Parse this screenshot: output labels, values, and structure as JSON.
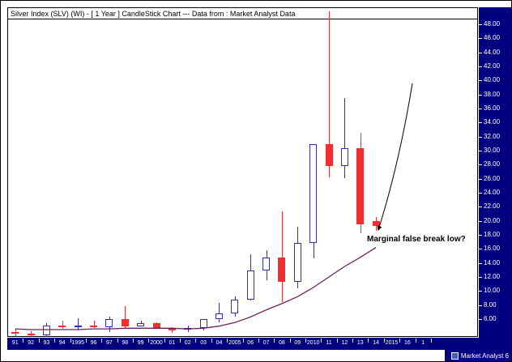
{
  "chart_data": {
    "type": "candlestick",
    "title_line": "Silver Index (SLV) (WI) -  [ 1 Year ] CandleStick Chart --- Data from : Market Analyst Data",
    "x_labels": [
      "91",
      "92",
      "93",
      "94",
      "1995",
      "96",
      "97",
      "98",
      "99",
      "2000",
      "01",
      "02",
      "03",
      "04",
      "2005",
      "06",
      "07",
      "08",
      "09",
      "2010",
      "11",
      "12",
      "13",
      "14",
      "2015",
      "16",
      "1"
    ],
    "y_tick_labels": [
      "48.00",
      "46.00",
      "44.00",
      "42.00",
      "40.00",
      "38.00",
      "36.00",
      "34.00",
      "32.00",
      "30.00",
      "28.00",
      "26.00",
      "24.00",
      "22.00",
      "20.00",
      "18.00",
      "16.00",
      "14.00",
      "12.00",
      "10.00",
      "8.00",
      "6.00"
    ],
    "ylim": [
      3.4,
      50.5
    ],
    "grid": "off",
    "candles": [
      {
        "year": "1991",
        "o": 4.2,
        "h": 4.6,
        "l": 3.6,
        "c": 3.9
      },
      {
        "year": "1992",
        "o": 3.9,
        "h": 4.3,
        "l": 3.6,
        "c": 3.7
      },
      {
        "year": "1993",
        "o": 3.7,
        "h": 5.4,
        "l": 3.6,
        "c": 5.1
      },
      {
        "year": "1994",
        "o": 5.1,
        "h": 5.8,
        "l": 4.6,
        "c": 4.9
      },
      {
        "year": "1995",
        "o": 4.9,
        "h": 6.1,
        "l": 4.4,
        "c": 5.1
      },
      {
        "year": "1996",
        "o": 5.1,
        "h": 5.8,
        "l": 4.7,
        "c": 4.8
      },
      {
        "year": "1997",
        "o": 4.8,
        "h": 6.3,
        "l": 4.2,
        "c": 6.0
      },
      {
        "year": "1998",
        "o": 6.0,
        "h": 7.8,
        "l": 4.6,
        "c": 5.0
      },
      {
        "year": "1999",
        "o": 5.0,
        "h": 5.8,
        "l": 4.9,
        "c": 5.4
      },
      {
        "year": "2000",
        "o": 5.4,
        "h": 5.6,
        "l": 4.6,
        "c": 4.6
      },
      {
        "year": "2001",
        "o": 4.6,
        "h": 4.8,
        "l": 4.0,
        "c": 4.5
      },
      {
        "year": "2002",
        "o": 4.5,
        "h": 5.1,
        "l": 4.2,
        "c": 4.7
      },
      {
        "year": "2003",
        "o": 4.7,
        "h": 6.0,
        "l": 4.4,
        "c": 6.0
      },
      {
        "year": "2004",
        "o": 6.0,
        "h": 8.3,
        "l": 5.5,
        "c": 6.8
      },
      {
        "year": "2005",
        "o": 6.8,
        "h": 9.2,
        "l": 6.4,
        "c": 8.8
      },
      {
        "year": "2006",
        "o": 8.8,
        "h": 15.2,
        "l": 8.7,
        "c": 12.9
      },
      {
        "year": "2007",
        "o": 12.9,
        "h": 15.8,
        "l": 11.5,
        "c": 14.8
      },
      {
        "year": "2008",
        "o": 14.8,
        "h": 21.3,
        "l": 8.4,
        "c": 11.3
      },
      {
        "year": "2009",
        "o": 11.3,
        "h": 19.2,
        "l": 10.4,
        "c": 16.8
      },
      {
        "year": "2010",
        "o": 16.8,
        "h": 30.9,
        "l": 14.7,
        "c": 30.9
      },
      {
        "year": "2011",
        "o": 30.9,
        "h": 49.8,
        "l": 26.2,
        "c": 27.8
      },
      {
        "year": "2012",
        "o": 27.8,
        "h": 37.5,
        "l": 26.1,
        "c": 30.4
      },
      {
        "year": "2013",
        "o": 30.4,
        "h": 32.5,
        "l": 18.2,
        "c": 19.5
      },
      {
        "year": "2014",
        "o": 20.0,
        "h": 20.6,
        "l": 18.6,
        "c": 19.3
      }
    ],
    "ma_line": {
      "name": "long-term-moving-average",
      "values": [
        4.6,
        4.5,
        4.5,
        4.5,
        4.5,
        4.6,
        4.6,
        4.7,
        4.7,
        4.7,
        4.7,
        4.6,
        4.7,
        5.0,
        5.5,
        6.3,
        7.3,
        8.2,
        9.2,
        10.5,
        12.0,
        13.5,
        14.8,
        16.2
      ]
    },
    "annotation": {
      "text": "Marginal false break low?"
    },
    "colors": {
      "up": "#3030c0",
      "down": "#f03030",
      "ma": "#6b2060",
      "panel": "#000080",
      "arrow": "#000000"
    }
  },
  "footer": {
    "brand": "Market Analyst 6"
  }
}
